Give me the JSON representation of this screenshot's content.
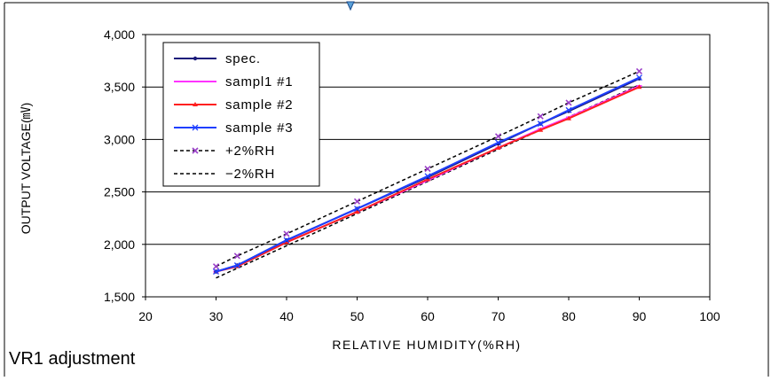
{
  "caption": "VR1 adjustment",
  "chart_data": {
    "type": "line",
    "title": "",
    "xlabel": "RELATIVE HUMIDITY(%RH)",
    "ylabel": "OUTPUT VOLTAGE(㎷)",
    "xlim": [
      20,
      100
    ],
    "ylim": [
      1500,
      4000
    ],
    "x_ticks": [
      20,
      30,
      40,
      50,
      60,
      70,
      80,
      90,
      100
    ],
    "y_ticks": [
      1500,
      2000,
      2500,
      3000,
      3500,
      4000
    ],
    "x_tick_labels": [
      "20",
      "30",
      "40",
      "50",
      "60",
      "70",
      "80",
      "90",
      "100"
    ],
    "y_tick_labels": [
      "1,500",
      "2,000",
      "2,500",
      "3,000",
      "3,500",
      "4,000"
    ],
    "grid": true,
    "legend_position": "top-left",
    "series": [
      {
        "name": "spec.",
        "color": "#1a1a7a",
        "dash": "solid",
        "marker": "dot",
        "x": [
          30,
          33,
          40,
          50,
          60,
          70,
          76,
          80,
          90
        ],
        "y": [
          1740,
          1800,
          2040,
          2340,
          2640,
          2960,
          3150,
          3270,
          3580
        ]
      },
      {
        "name": "sampl1 #1",
        "color": "#ff33ff",
        "dash": "solid",
        "marker": "dash",
        "x": [
          30,
          33,
          40,
          50,
          60,
          70,
          76,
          80,
          90
        ],
        "y": [
          1740,
          1790,
          2020,
          2310,
          2610,
          2920,
          3100,
          3210,
          3510
        ]
      },
      {
        "name": "sample #2",
        "color": "#ff2020",
        "dash": "solid",
        "marker": "triangle",
        "x": [
          30,
          33,
          40,
          50,
          60,
          70,
          76,
          80,
          90
        ],
        "y": [
          1740,
          1790,
          2020,
          2310,
          2620,
          2920,
          3090,
          3200,
          3500
        ]
      },
      {
        "name": "sample #3",
        "color": "#1f3fff",
        "dash": "solid",
        "marker": "x",
        "x": [
          30,
          33,
          40,
          50,
          60,
          70,
          76,
          80,
          90
        ],
        "y": [
          1740,
          1800,
          2040,
          2340,
          2650,
          2970,
          3150,
          3280,
          3590
        ]
      },
      {
        "name": "+2%RH",
        "color": "#000000",
        "dash": "dashed",
        "marker": "purple-x",
        "x": [
          30,
          33,
          40,
          50,
          60,
          70,
          76,
          80,
          90
        ],
        "y": [
          1790,
          1890,
          2100,
          2410,
          2720,
          3030,
          3220,
          3350,
          3650
        ]
      },
      {
        "name": "−2%RH",
        "color": "#000000",
        "dash": "dashed",
        "marker": "none",
        "x": [
          30,
          90
        ],
        "y": [
          1680,
          3520
        ]
      }
    ]
  }
}
